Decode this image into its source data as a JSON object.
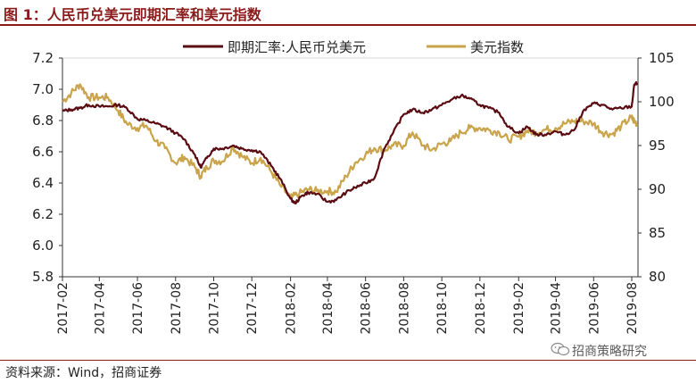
{
  "header": {
    "title": "图 1：人民币兑美元即期汇率和美元指数"
  },
  "footer": {
    "source": "资料来源：Wind，招商证券",
    "watermark": "招商策略研究",
    "watermark_icon": "wechat-icon"
  },
  "colors": {
    "title": "#8b1a1a",
    "cny": "#5a0c12",
    "dxy": "#c9a44a",
    "axis": "#333333",
    "grid": "#d9d9d9"
  },
  "chart_data": {
    "type": "line",
    "legend_position": "top",
    "grid": false,
    "x_range": [
      "2017-02",
      "2019-08"
    ],
    "x_ticks": [
      "2017-02",
      "2017-04",
      "2017-06",
      "2017-08",
      "2017-10",
      "2017-12",
      "2018-02",
      "2018-04",
      "2018-06",
      "2018-08",
      "2018-10",
      "2018-12",
      "2019-02",
      "2019-04",
      "2019-06",
      "2019-08"
    ],
    "y_left": {
      "min": 5.8,
      "max": 7.2,
      "ticks": [
        "7.2",
        "7.0",
        "6.8",
        "6.6",
        "6.4",
        "6.2",
        "6.0",
        "5.8"
      ]
    },
    "y_right": {
      "min": 80,
      "max": 105,
      "ticks": [
        "105",
        "100",
        "95",
        "90",
        "85",
        "80"
      ]
    },
    "series": [
      {
        "name": "即期汇率:人民币兑美元",
        "axis": "left",
        "points": [
          [
            "2017-02-01",
            6.86
          ],
          [
            "2017-02-15",
            6.87
          ],
          [
            "2017-03-01",
            6.88
          ],
          [
            "2017-03-15",
            6.9
          ],
          [
            "2017-04-01",
            6.89
          ],
          [
            "2017-04-15",
            6.89
          ],
          [
            "2017-05-01",
            6.9
          ],
          [
            "2017-05-15",
            6.88
          ],
          [
            "2017-06-01",
            6.81
          ],
          [
            "2017-06-15",
            6.8
          ],
          [
            "2017-07-01",
            6.78
          ],
          [
            "2017-07-15",
            6.76
          ],
          [
            "2017-08-01",
            6.72
          ],
          [
            "2017-08-15",
            6.68
          ],
          [
            "2017-09-01",
            6.58
          ],
          [
            "2017-09-10",
            6.5
          ],
          [
            "2017-09-20",
            6.56
          ],
          [
            "2017-10-01",
            6.62
          ],
          [
            "2017-10-15",
            6.62
          ],
          [
            "2017-11-01",
            6.64
          ],
          [
            "2017-11-15",
            6.62
          ],
          [
            "2017-12-01",
            6.61
          ],
          [
            "2017-12-15",
            6.6
          ],
          [
            "2018-01-01",
            6.51
          ],
          [
            "2018-01-15",
            6.43
          ],
          [
            "2018-02-01",
            6.3
          ],
          [
            "2018-02-08",
            6.27
          ],
          [
            "2018-02-20",
            6.32
          ],
          [
            "2018-03-01",
            6.34
          ],
          [
            "2018-03-15",
            6.33
          ],
          [
            "2018-04-01",
            6.28
          ],
          [
            "2018-04-15",
            6.29
          ],
          [
            "2018-05-01",
            6.34
          ],
          [
            "2018-05-15",
            6.37
          ],
          [
            "2018-06-01",
            6.4
          ],
          [
            "2018-06-15",
            6.43
          ],
          [
            "2018-07-01",
            6.62
          ],
          [
            "2018-07-15",
            6.72
          ],
          [
            "2018-08-01",
            6.84
          ],
          [
            "2018-08-15",
            6.87
          ],
          [
            "2018-09-01",
            6.85
          ],
          [
            "2018-09-15",
            6.87
          ],
          [
            "2018-10-01",
            6.9
          ],
          [
            "2018-10-15",
            6.93
          ],
          [
            "2018-11-01",
            6.96
          ],
          [
            "2018-11-15",
            6.94
          ],
          [
            "2018-12-01",
            6.9
          ],
          [
            "2018-12-15",
            6.88
          ],
          [
            "2019-01-01",
            6.85
          ],
          [
            "2019-01-15",
            6.76
          ],
          [
            "2019-02-01",
            6.72
          ],
          [
            "2019-02-15",
            6.76
          ],
          [
            "2019-03-01",
            6.71
          ],
          [
            "2019-03-15",
            6.71
          ],
          [
            "2019-04-01",
            6.73
          ],
          [
            "2019-04-15",
            6.71
          ],
          [
            "2019-05-01",
            6.74
          ],
          [
            "2019-05-15",
            6.86
          ],
          [
            "2019-06-01",
            6.91
          ],
          [
            "2019-06-15",
            6.9
          ],
          [
            "2019-07-01",
            6.87
          ],
          [
            "2019-07-15",
            6.88
          ],
          [
            "2019-08-01",
            6.89
          ],
          [
            "2019-08-05",
            7.03
          ],
          [
            "2019-08-10",
            7.04
          ]
        ]
      },
      {
        "name": "美元指数",
        "axis": "right",
        "points": [
          [
            "2017-02-01",
            100.0
          ],
          [
            "2017-02-15",
            101.0
          ],
          [
            "2017-03-01",
            102.0
          ],
          [
            "2017-03-15",
            100.5
          ],
          [
            "2017-04-01",
            100.5
          ],
          [
            "2017-04-15",
            100.5
          ],
          [
            "2017-05-01",
            99.0
          ],
          [
            "2017-05-15",
            97.5
          ],
          [
            "2017-06-01",
            97.0
          ],
          [
            "2017-06-15",
            97.3
          ],
          [
            "2017-07-01",
            95.5
          ],
          [
            "2017-07-15",
            94.7
          ],
          [
            "2017-08-01",
            93.0
          ],
          [
            "2017-08-15",
            93.7
          ],
          [
            "2017-09-01",
            92.5
          ],
          [
            "2017-09-10",
            91.5
          ],
          [
            "2017-09-20",
            92.5
          ],
          [
            "2017-10-01",
            93.3
          ],
          [
            "2017-10-15",
            93.2
          ],
          [
            "2017-11-01",
            94.8
          ],
          [
            "2017-11-15",
            93.8
          ],
          [
            "2017-12-01",
            93.0
          ],
          [
            "2017-12-15",
            93.6
          ],
          [
            "2018-01-01",
            92.0
          ],
          [
            "2018-01-15",
            90.5
          ],
          [
            "2018-02-01",
            89.0
          ],
          [
            "2018-02-15",
            89.5
          ],
          [
            "2018-03-01",
            90.0
          ],
          [
            "2018-03-15",
            89.8
          ],
          [
            "2018-04-01",
            89.8
          ],
          [
            "2018-04-15",
            89.7
          ],
          [
            "2018-05-01",
            91.5
          ],
          [
            "2018-05-15",
            93.0
          ],
          [
            "2018-06-01",
            94.0
          ],
          [
            "2018-06-15",
            94.7
          ],
          [
            "2018-07-01",
            94.5
          ],
          [
            "2018-07-15",
            95.0
          ],
          [
            "2018-08-01",
            95.0
          ],
          [
            "2018-08-15",
            96.5
          ],
          [
            "2018-09-01",
            95.0
          ],
          [
            "2018-09-15",
            94.5
          ],
          [
            "2018-10-01",
            95.2
          ],
          [
            "2018-10-15",
            95.5
          ],
          [
            "2018-11-01",
            96.5
          ],
          [
            "2018-11-15",
            97.0
          ],
          [
            "2018-12-01",
            97.0
          ],
          [
            "2018-12-15",
            96.8
          ],
          [
            "2019-01-01",
            96.5
          ],
          [
            "2019-01-15",
            95.7
          ],
          [
            "2019-02-01",
            96.0
          ],
          [
            "2019-02-15",
            96.7
          ],
          [
            "2019-03-01",
            96.5
          ],
          [
            "2019-03-15",
            96.8
          ],
          [
            "2019-04-01",
            97.0
          ],
          [
            "2019-04-15",
            97.5
          ],
          [
            "2019-05-01",
            97.8
          ],
          [
            "2019-05-15",
            97.8
          ],
          [
            "2019-06-01",
            97.5
          ],
          [
            "2019-06-15",
            96.5
          ],
          [
            "2019-07-01",
            96.3
          ],
          [
            "2019-07-15",
            97.2
          ],
          [
            "2019-07-31",
            98.2
          ],
          [
            "2019-08-05",
            97.8
          ],
          [
            "2019-08-10",
            97.5
          ]
        ]
      }
    ]
  }
}
